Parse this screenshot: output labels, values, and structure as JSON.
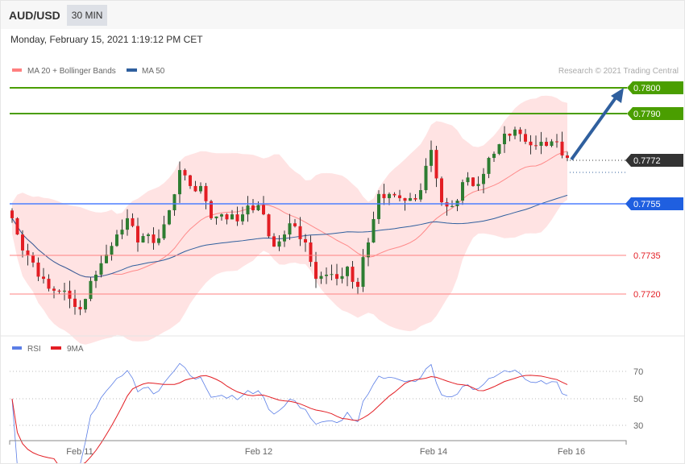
{
  "header": {
    "symbol": "AUD/USD",
    "timeframe": "30 MIN",
    "datetime": "Monday, February 15, 2021 1:19:12 PM CET"
  },
  "legend": {
    "ma20": "MA 20 + Bollinger Bands",
    "ma50": "MA 50",
    "copyright": "Research © 2021 Trading Central"
  },
  "colors": {
    "resistance": "#4a9e00",
    "pivot": "#1f5fe0",
    "support": "#ff4d4d",
    "current": "#333333",
    "bull": "#2e7d32",
    "bear": "#e31e24",
    "ma50": "#2f5f9e",
    "rsi": "#5b7ee6",
    "rsi9ma": "#e31e24"
  },
  "levels": {
    "r2": "0.7800",
    "r1": "0.7790",
    "current": "0.7772",
    "pivot": "0.7755",
    "s1": "0.7735",
    "s2": "0.7720"
  },
  "rsi_panel": {
    "rsi_label": "RSI",
    "ma_label": "9MA",
    "ticks": [
      "70",
      "50",
      "30"
    ]
  },
  "chart_data": {
    "type": "candlestick",
    "price_range": [
      0.7706,
      0.7808
    ],
    "closes": [
      0.77494,
      0.77369,
      0.77322,
      0.77259,
      0.77213,
      0.77213,
      0.7715,
      0.77181,
      0.77275,
      0.77353,
      0.77431,
      0.77494,
      0.774,
      0.77431,
      0.77416,
      0.77525,
      0.77681,
      0.77619,
      0.77619,
      0.77494,
      0.77509,
      0.77509,
      0.77509,
      0.77525,
      0.77509,
      0.77384,
      0.77431,
      0.77463,
      0.774,
      0.77259,
      0.77275,
      0.77259,
      0.77306,
      0.77228,
      0.774,
      0.77588,
      0.77588,
      0.77572,
      0.77572,
      0.77603,
      0.77759,
      0.77556,
      0.77541,
      0.77634,
      0.77619,
      0.77666,
      0.77744,
      0.77822,
      0.77838,
      0.77791,
      0.77775,
      0.77775,
      0.77791,
      0.77728
    ],
    "x_labels": [
      "Feb 11",
      "Feb 12",
      "Feb 14",
      "Feb 16"
    ]
  }
}
